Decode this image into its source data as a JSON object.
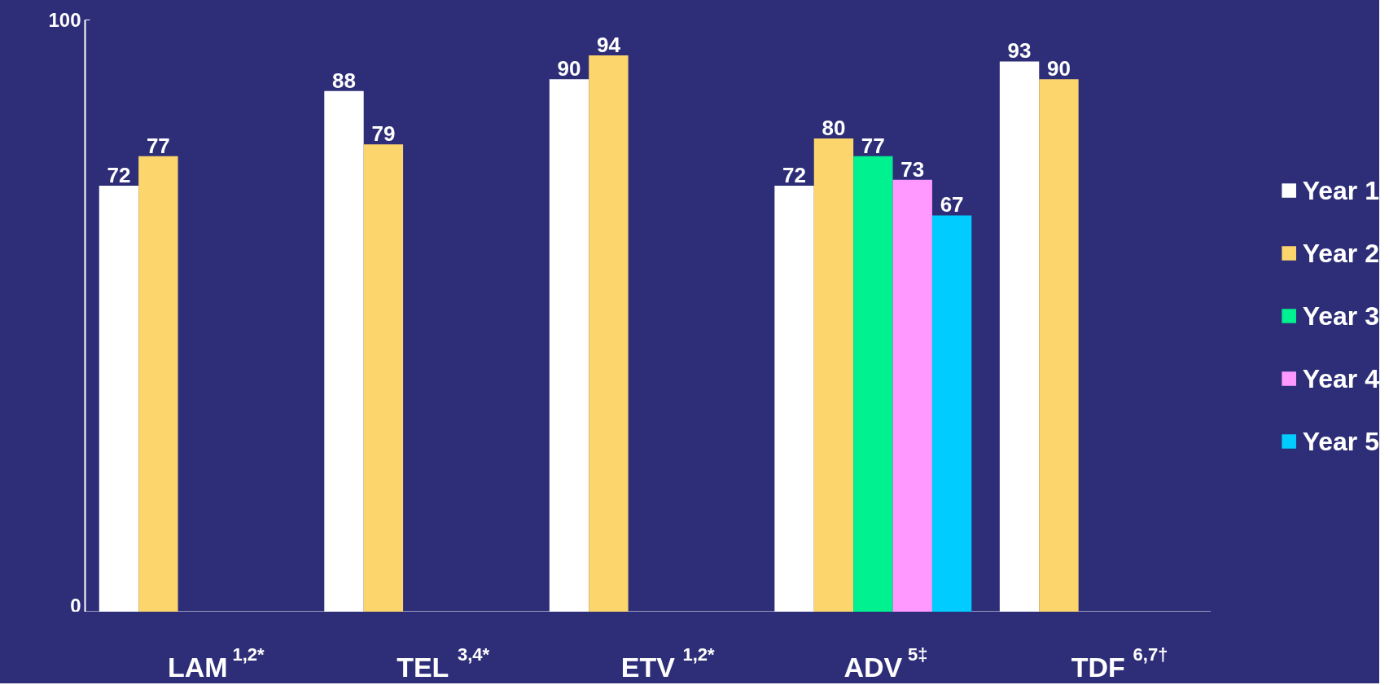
{
  "chart_data": {
    "type": "bar",
    "categories": [
      "LAM $^{1,2*}$",
      "TEL $^{3,4*}$",
      "ETV $^{1,2*}$",
      "ADV $^{5‡}$",
      "TDF $^{6,7†}$"
    ],
    "series": [
      {
        "name": "Year 1",
        "color": "#ffffff",
        "values": [
          72,
          88,
          90,
          72,
          93
        ]
      },
      {
        "name": "Year 2",
        "color": "#fcd66c",
        "values": [
          77,
          79,
          94,
          80,
          90
        ]
      },
      {
        "name": "Year 3",
        "color": "#00f18f",
        "values": [
          null,
          null,
          null,
          77,
          null
        ]
      },
      {
        "name": "Year 4",
        "color": "#ff99ff",
        "values": [
          null,
          null,
          null,
          73,
          null
        ]
      },
      {
        "name": "Year 5",
        "color": "#00ccff",
        "values": [
          null,
          null,
          null,
          67,
          null
        ]
      }
    ],
    "ylim": [
      0,
      100
    ],
    "yticks": [
      0,
      100
    ],
    "data_labels": true,
    "legend": "right",
    "grid": false
  }
}
